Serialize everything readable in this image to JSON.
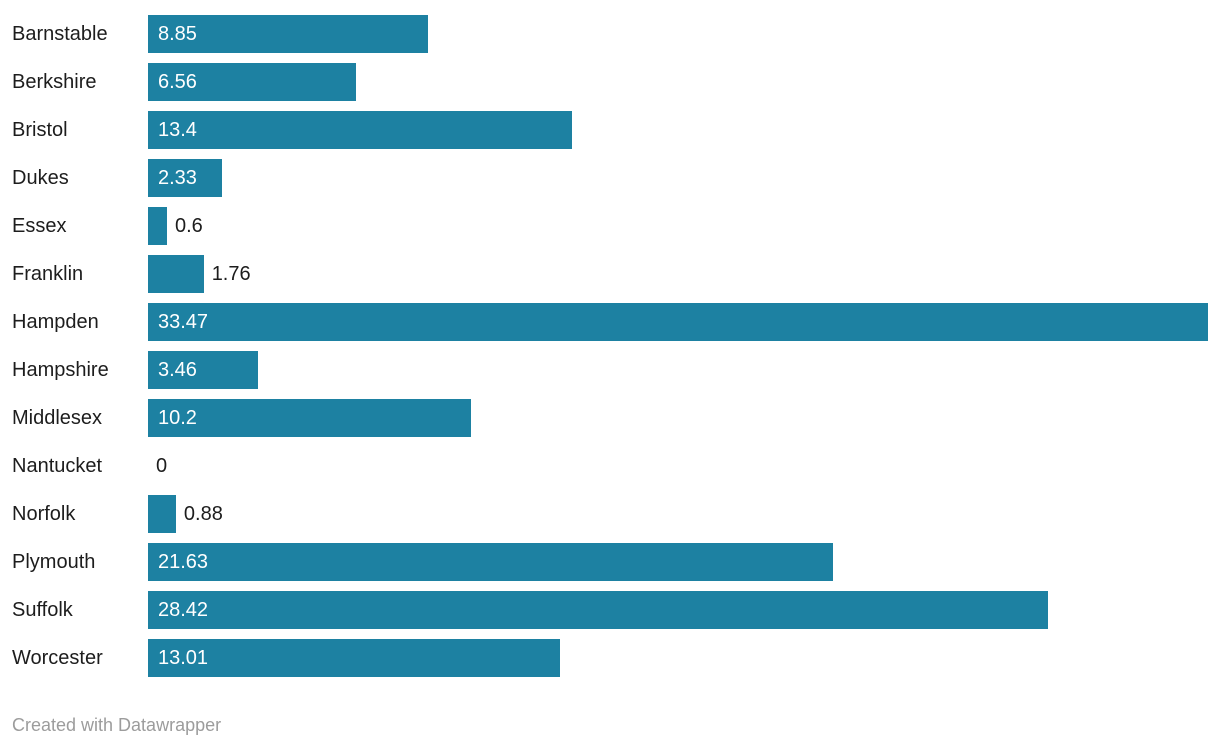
{
  "chart_data": {
    "type": "bar",
    "orientation": "horizontal",
    "title": "",
    "xlabel": "",
    "ylabel": "",
    "categories": [
      "Barnstable",
      "Berkshire",
      "Bristol",
      "Dukes",
      "Essex",
      "Franklin",
      "Hampden",
      "Hampshire",
      "Middlesex",
      "Nantucket",
      "Norfolk",
      "Plymouth",
      "Suffolk",
      "Worcester"
    ],
    "values": [
      8.85,
      6.56,
      13.4,
      2.33,
      0.6,
      1.76,
      33.47,
      3.46,
      10.2,
      0,
      0.88,
      21.63,
      28.42,
      13.01
    ],
    "value_labels": [
      "8.85",
      "6.56",
      "13.4",
      "2.33",
      "0.6",
      "1.76",
      "33.47",
      "3.46",
      "10.2",
      "0",
      "0.88",
      "21.63",
      "28.42",
      "13.01"
    ],
    "xlim": [
      0,
      33.47
    ],
    "grid": false,
    "legend": false,
    "bar_color": "#1d81a2",
    "label_color": "#1d1d1d",
    "value_inside_color": "#ffffff",
    "value_outside_color": "#1d1d1d"
  },
  "footer": {
    "credit": "Created with Datawrapper",
    "color": "#9c9c9c"
  }
}
